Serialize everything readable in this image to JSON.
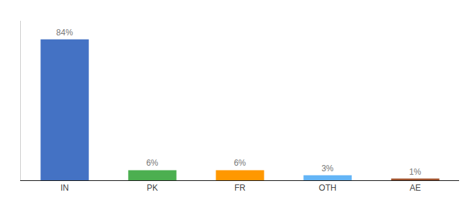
{
  "chart_data": {
    "type": "bar",
    "categories": [
      "IN",
      "PK",
      "FR",
      "OTH",
      "AE"
    ],
    "values": [
      84,
      6,
      6,
      3,
      1
    ],
    "value_labels": [
      "84%",
      "6%",
      "6%",
      "3%",
      "1%"
    ],
    "colors": [
      "#4472c4",
      "#4caf50",
      "#ff9800",
      "#64b5f6",
      "#a0522d"
    ],
    "ylim": [
      0,
      95
    ],
    "data_labels": true,
    "grid": false,
    "tick_labels": "x"
  }
}
